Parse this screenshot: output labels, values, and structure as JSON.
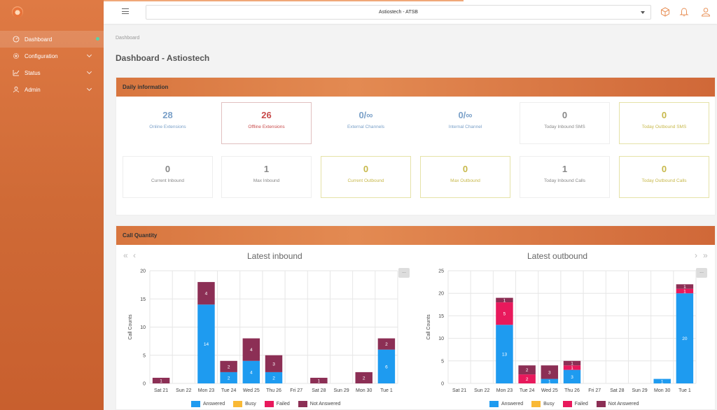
{
  "header": {
    "selected_company": "Astiostech - ATSB"
  },
  "sidebar": {
    "items": [
      {
        "label": "Dashboard",
        "active": true,
        "icon": "gauge-icon"
      },
      {
        "label": "Configuration",
        "icon": "gear-icon"
      },
      {
        "label": "Status",
        "icon": "bar-chart-icon"
      },
      {
        "label": "Admin",
        "icon": "user-icon"
      }
    ]
  },
  "breadcrumb": "Dashboard",
  "page_title": "Dashboard - Astiostech",
  "daily": {
    "title": "Daily information",
    "stats": [
      {
        "value": "28",
        "label": "Online Extensions",
        "color": "#7aa0c8"
      },
      {
        "value": "26",
        "label": "Offline Extensions",
        "color": "#c84a4a"
      },
      {
        "value": "0/∞",
        "label": "External Channels",
        "color": "#7aa0c8"
      },
      {
        "value": "0/∞",
        "label": "Internal Channel",
        "color": "#7aa0c8"
      },
      {
        "value": "0",
        "label": "Today Inbound SMS",
        "color": "#888888"
      },
      {
        "value": "0",
        "label": "Today Outbound SMS",
        "color": "#c7b84a"
      },
      {
        "value": "0",
        "label": "Current Inbound",
        "color": "#888888"
      },
      {
        "value": "1",
        "label": "Max Inbound",
        "color": "#888888"
      },
      {
        "value": "0",
        "label": "Current Outbound",
        "color": "#c7b84a"
      },
      {
        "value": "0",
        "label": "Max Outbound",
        "color": "#c7b84a"
      },
      {
        "value": "1",
        "label": "Today Inbound Calls",
        "color": "#888888"
      },
      {
        "value": "0",
        "label": "Today Outbound Calls",
        "color": "#c7b84a"
      }
    ]
  },
  "calls": {
    "title": "Call Quantity",
    "legend": [
      "Answered",
      "Busy",
      "Failed",
      "Not Answered"
    ],
    "colors": {
      "Answered": "#1e9bf0",
      "Busy": "#f9b935",
      "Failed": "#e8195c",
      "Not Answered": "#8c2f55"
    },
    "menu_label": "..."
  },
  "chart_data": [
    {
      "type": "bar",
      "stacked": true,
      "title": "Latest inbound",
      "ylabel": "Call Counts",
      "ylim": [
        0,
        20
      ],
      "yticks": [
        0,
        5,
        10,
        15,
        20
      ],
      "categories": [
        "Sat 21",
        "Sun 22",
        "Mon 23",
        "Tue 24",
        "Wed 25",
        "Thu 26",
        "Fri 27",
        "Sat 28",
        "Sun 29",
        "Mon 30",
        "Tue 1"
      ],
      "series": [
        {
          "name": "Answered",
          "values": [
            0,
            0,
            14,
            2,
            4,
            2,
            0,
            0,
            0,
            0,
            6
          ]
        },
        {
          "name": "Busy",
          "values": [
            0,
            0,
            0,
            0,
            0,
            0,
            0,
            0,
            0,
            0,
            0
          ]
        },
        {
          "name": "Failed",
          "values": [
            0,
            0,
            0,
            0,
            0,
            0,
            0,
            0,
            0,
            0,
            0
          ]
        },
        {
          "name": "Not Answered",
          "values": [
            1,
            0,
            4,
            2,
            4,
            3,
            0,
            1,
            0,
            2,
            2
          ]
        }
      ]
    },
    {
      "type": "bar",
      "stacked": true,
      "title": "Latest outbound",
      "ylabel": "Call Counts",
      "ylim": [
        0,
        25
      ],
      "yticks": [
        0,
        5,
        10,
        15,
        20,
        25
      ],
      "categories": [
        "Sat 21",
        "Sun 22",
        "Mon 23",
        "Tue 24",
        "Wed 25",
        "Thu 26",
        "Fri 27",
        "Sat 28",
        "Sun 29",
        "Mon 30",
        "Tue 1"
      ],
      "series": [
        {
          "name": "Answered",
          "values": [
            0,
            0,
            13,
            0,
            1,
            3,
            0,
            0,
            0,
            1,
            20
          ]
        },
        {
          "name": "Busy",
          "values": [
            0,
            0,
            0,
            0,
            0,
            0,
            0,
            0,
            0,
            0,
            0
          ]
        },
        {
          "name": "Failed",
          "values": [
            0,
            0,
            5,
            2,
            0,
            1,
            0,
            0,
            0,
            0,
            1
          ]
        },
        {
          "name": "Not Answered",
          "values": [
            0,
            0,
            1,
            2,
            3,
            1,
            0,
            0,
            0,
            0,
            1
          ]
        }
      ]
    }
  ]
}
